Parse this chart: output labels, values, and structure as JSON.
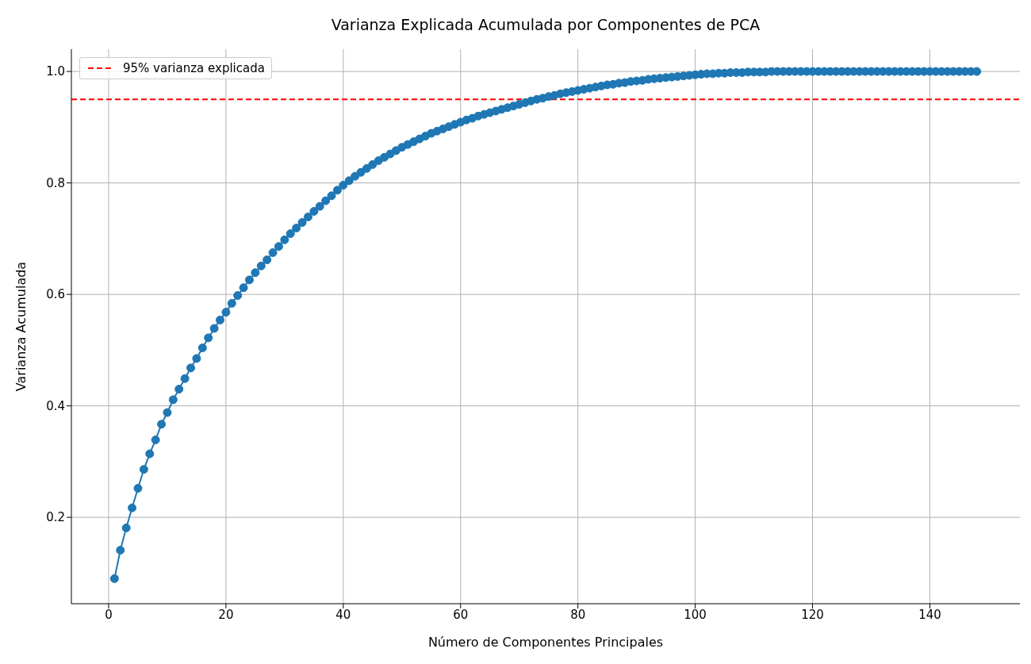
{
  "chart_data": {
    "type": "line",
    "title": "Varianza Explicada Acumulada por Componentes de PCA",
    "xlabel": "Número de Componentes Principales",
    "ylabel": "Varianza Acumulada",
    "x": [
      1,
      2,
      3,
      4,
      5,
      6,
      7,
      8,
      9,
      10,
      11,
      12,
      13,
      14,
      15,
      16,
      17,
      18,
      19,
      20,
      21,
      22,
      23,
      24,
      25,
      26,
      27,
      28,
      29,
      30,
      31,
      32,
      33,
      34,
      35,
      36,
      37,
      38,
      39,
      40,
      41,
      42,
      43,
      44,
      45,
      46,
      47,
      48,
      49,
      50,
      51,
      52,
      53,
      54,
      55,
      56,
      57,
      58,
      59,
      60,
      61,
      62,
      63,
      64,
      65,
      66,
      67,
      68,
      69,
      70,
      71,
      72,
      73,
      74,
      75,
      76,
      77,
      78,
      79,
      80,
      81,
      82,
      83,
      84,
      85,
      86,
      87,
      88,
      89,
      90,
      91,
      92,
      93,
      94,
      95,
      96,
      97,
      98,
      99,
      100,
      101,
      102,
      103,
      104,
      105,
      106,
      107,
      108,
      109,
      110,
      111,
      112,
      113,
      114,
      115,
      116,
      117,
      118,
      119,
      120,
      121,
      122,
      123,
      124,
      125,
      126,
      127,
      128,
      129,
      130,
      131,
      132,
      133,
      134,
      135,
      136,
      137,
      138,
      139,
      140,
      141,
      142,
      143,
      144,
      145,
      146,
      147,
      148
    ],
    "series": [
      {
        "color": "#1f77b4",
        "values": [
          0.09,
          0.141,
          0.181,
          0.217,
          0.252,
          0.286,
          0.314,
          0.339,
          0.367,
          0.388,
          0.411,
          0.43,
          0.449,
          0.468,
          0.485,
          0.504,
          0.522,
          0.539,
          0.554,
          0.568,
          0.584,
          0.598,
          0.612,
          0.626,
          0.639,
          0.651,
          0.662,
          0.675,
          0.686,
          0.698,
          0.709,
          0.719,
          0.729,
          0.739,
          0.749,
          0.758,
          0.768,
          0.777,
          0.787,
          0.796,
          0.804,
          0.812,
          0.819,
          0.826,
          0.833,
          0.84,
          0.846,
          0.852,
          0.858,
          0.864,
          0.869,
          0.874,
          0.879,
          0.884,
          0.889,
          0.893,
          0.897,
          0.901,
          0.905,
          0.909,
          0.913,
          0.916,
          0.92,
          0.923,
          0.926,
          0.929,
          0.932,
          0.935,
          0.938,
          0.941,
          0.944,
          0.947,
          0.95,
          0.952,
          0.955,
          0.957,
          0.96,
          0.962,
          0.964,
          0.966,
          0.968,
          0.97,
          0.972,
          0.974,
          0.976,
          0.977,
          0.979,
          0.98,
          0.982,
          0.983,
          0.984,
          0.986,
          0.987,
          0.988,
          0.989,
          0.99,
          0.991,
          0.992,
          0.993,
          0.994,
          0.995,
          0.996,
          0.996,
          0.997,
          0.997,
          0.998,
          0.998,
          0.998,
          0.999,
          0.999,
          0.999,
          0.999,
          1,
          1,
          1,
          1,
          1,
          1,
          1,
          1,
          1,
          1,
          1,
          1,
          1,
          1,
          1,
          1,
          1,
          1,
          1,
          1,
          1,
          1,
          1,
          1,
          1,
          1,
          1,
          1,
          1,
          1,
          1,
          1,
          1,
          1,
          1,
          1
        ]
      }
    ],
    "xlim": [
      -6.35,
      155.35
    ],
    "xticks": [
      0,
      20,
      40,
      60,
      80,
      100,
      120,
      140
    ],
    "ylim": [
      0.045,
      1.04
    ],
    "yticks": [
      0.2,
      0.4,
      0.6,
      0.8,
      {
        "value": 1,
        "label": "1.0"
      }
    ],
    "ref_lines": [
      {
        "axis": "y",
        "value": 0.95,
        "label": "95% varianza explicada",
        "color": "#ff0000",
        "line_style": "dashed"
      }
    ],
    "grid": true,
    "legend": "top left",
    "marker": "circle",
    "line_style": "solid"
  }
}
